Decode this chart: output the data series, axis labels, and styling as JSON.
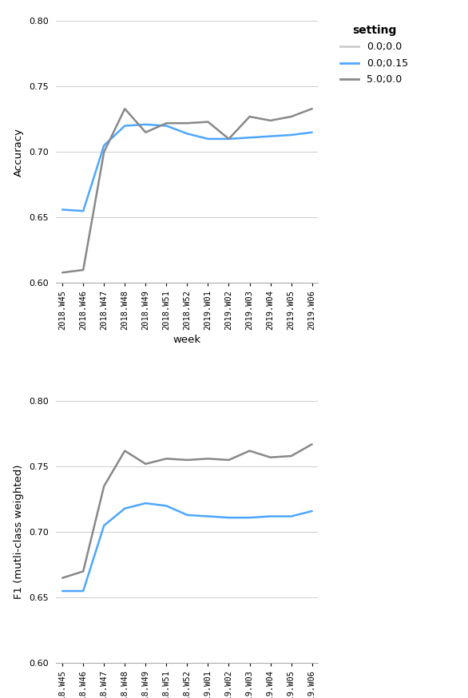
{
  "weeks": [
    "2018.W45",
    "2018.W46",
    "2018.W47",
    "2018.W48",
    "2018.W49",
    "2018.W51",
    "2018.W52",
    "2019.W01",
    "2019.W02",
    "2019.W03",
    "2019.W04",
    "2019.W05",
    "2019.W06"
  ],
  "accuracy": {
    "0.0;0.0": [
      null,
      null,
      null,
      null,
      null,
      null,
      null,
      null,
      null,
      null,
      null,
      null,
      null
    ],
    "0.0;0.15": [
      0.656,
      0.655,
      0.705,
      0.72,
      0.721,
      0.72,
      0.714,
      0.71,
      0.71,
      0.711,
      0.712,
      0.713,
      0.715
    ],
    "5.0;0.0": [
      0.608,
      0.61,
      0.7,
      0.733,
      0.715,
      0.722,
      0.722,
      0.723,
      0.71,
      0.727,
      0.724,
      0.727,
      0.733
    ]
  },
  "f1": {
    "0.0;0.0": [
      null,
      null,
      null,
      null,
      null,
      null,
      null,
      null,
      null,
      null,
      null,
      null,
      null
    ],
    "0.0;0.15": [
      0.655,
      0.655,
      0.705,
      0.718,
      0.722,
      0.72,
      0.713,
      0.712,
      0.711,
      0.711,
      0.712,
      0.712,
      0.716
    ],
    "5.0;0.0": [
      0.665,
      0.67,
      0.735,
      0.762,
      0.752,
      0.756,
      0.755,
      0.756,
      0.755,
      0.762,
      0.757,
      0.758,
      0.767
    ]
  },
  "colors": {
    "0.0;0.0": "#cccccc",
    "0.0;0.15": "#4da6ff",
    "5.0;0.0": "#888888"
  },
  "ylim": [
    0.6,
    0.8
  ],
  "yticks": [
    0.6,
    0.65,
    0.7,
    0.75,
    0.8
  ],
  "xlabel": "week",
  "ylabel_top": "Accuracy",
  "ylabel_bottom": "F1 (mutli-class weighted)",
  "legend_title": "setting",
  "settings": [
    "0.0;0.0",
    "0.0;0.15",
    "5.0;0.0"
  ],
  "background_color": "#ffffff",
  "grid_color": "#cccccc",
  "linewidth": 1.8
}
